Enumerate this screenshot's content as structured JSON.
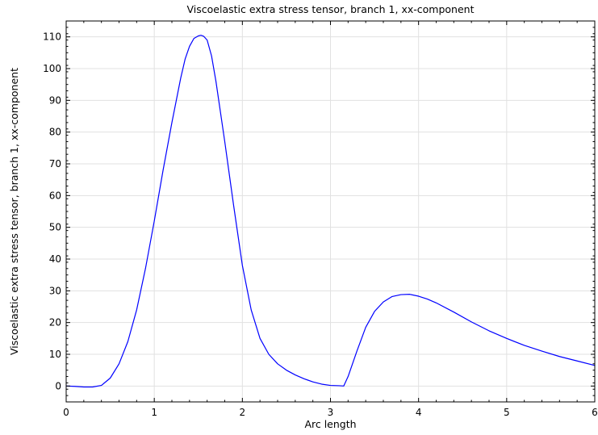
{
  "chart_data": {
    "type": "line",
    "title": "Viscoelastic extra stress tensor, branch 1, xx-component",
    "xlabel": "Arc length",
    "ylabel": "Viscoelastic extra stress tensor, branch 1, xx-component",
    "xlim": [
      0,
      6
    ],
    "ylim": [
      -5,
      115
    ],
    "xticks": [
      0,
      1,
      2,
      3,
      4,
      5,
      6
    ],
    "yticks": [
      0,
      10,
      20,
      30,
      40,
      50,
      60,
      70,
      80,
      90,
      100,
      110
    ],
    "xtick_labels": [
      "0",
      "1",
      "2",
      "3",
      "4",
      "5",
      "6"
    ],
    "ytick_labels": [
      "0",
      "10",
      "20",
      "30",
      "40",
      "50",
      "60",
      "70",
      "80",
      "90",
      "100",
      "110"
    ],
    "grid": true,
    "series": [
      {
        "color": "#0000ff",
        "x": [
          0,
          0.1,
          0.2,
          0.3,
          0.4,
          0.5,
          0.6,
          0.7,
          0.8,
          0.9,
          1.0,
          1.1,
          1.2,
          1.3,
          1.35,
          1.4,
          1.45,
          1.5,
          1.53,
          1.56,
          1.6,
          1.65,
          1.7,
          1.8,
          1.9,
          2.0,
          2.1,
          2.2,
          2.3,
          2.4,
          2.5,
          2.6,
          2.7,
          2.8,
          2.9,
          3.0,
          3.1,
          3.15,
          3.2,
          3.3,
          3.4,
          3.5,
          3.6,
          3.7,
          3.8,
          3.9,
          4.0,
          4.1,
          4.2,
          4.4,
          4.6,
          4.8,
          5.0,
          5.2,
          5.4,
          5.6,
          5.8,
          6.0
        ],
        "y": [
          0,
          -0.1,
          -0.3,
          -0.3,
          0.2,
          2.5,
          7.0,
          14.0,
          24.0,
          37.0,
          52.0,
          68.0,
          83.0,
          97.0,
          103.0,
          107.0,
          109.5,
          110.3,
          110.5,
          110.2,
          109.0,
          104.0,
          96.0,
          77.0,
          57.0,
          38.0,
          24.0,
          15.0,
          10.0,
          7.0,
          5.0,
          3.5,
          2.3,
          1.3,
          0.6,
          0.2,
          0.1,
          0.0,
          3.0,
          11.0,
          18.5,
          23.5,
          26.5,
          28.2,
          28.8,
          28.9,
          28.3,
          27.4,
          26.2,
          23.3,
          20.2,
          17.4,
          15.0,
          12.8,
          11.0,
          9.3,
          7.9,
          6.5
        ]
      }
    ]
  }
}
